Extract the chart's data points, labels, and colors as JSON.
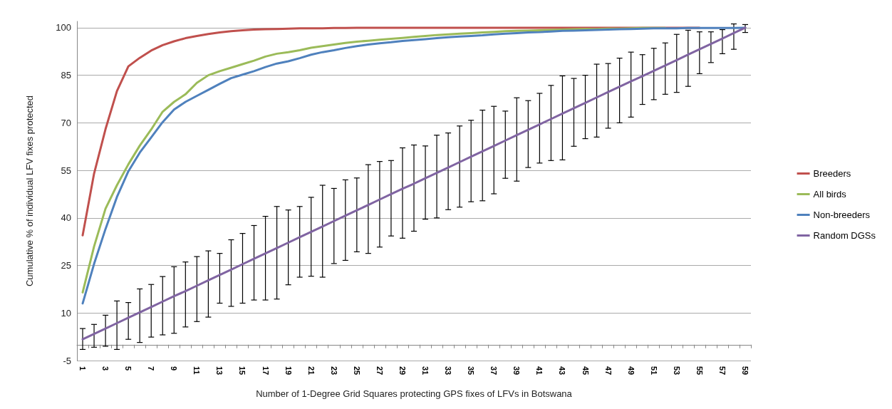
{
  "chart_data": {
    "type": "line",
    "xlabel": "Number of 1-Degree Grid Squares protecting GPS fixes of LFVs in Botswana",
    "ylabel": "Cumulative % of individual LFV fixes protected",
    "categories": [
      "1",
      null,
      "3",
      null,
      "5",
      null,
      "7",
      null,
      "9",
      null,
      "11",
      null,
      "13",
      null,
      "15",
      null,
      "17",
      null,
      "19",
      null,
      "21",
      null,
      "23",
      null,
      "25",
      null,
      "27",
      null,
      "29",
      null,
      "31",
      null,
      "33",
      null,
      "35",
      null,
      "37",
      null,
      "39",
      null,
      "41",
      null,
      "43",
      null,
      "45",
      null,
      "47",
      null,
      "49",
      null,
      "51",
      null,
      "53",
      null,
      "55",
      null,
      "57",
      null,
      "59"
    ],
    "ylim": [
      -5,
      102
    ],
    "yticks": [
      -5,
      10,
      25,
      40,
      55,
      70,
      85,
      100
    ],
    "grid": "y",
    "legend": "right",
    "marker": "none",
    "line_style": "solid",
    "series": [
      {
        "name": "Breeders",
        "color": "#c0504d",
        "values": [
          34.5,
          54,
          68,
          80,
          87.8,
          90.5,
          92.8,
          94.5,
          95.7,
          96.7,
          97.4,
          98.0,
          98.5,
          98.9,
          99.2,
          99.4,
          99.5,
          99.6,
          99.7,
          99.8,
          99.8,
          99.8,
          99.9,
          99.9,
          100,
          100,
          100,
          100,
          100,
          100,
          100,
          100,
          100,
          100,
          100,
          100,
          100,
          100,
          100,
          100,
          100,
          100,
          100,
          100,
          100,
          100,
          100,
          100,
          100,
          100,
          100,
          100,
          100,
          100,
          100,
          null,
          null,
          null,
          null
        ]
      },
      {
        "name": "All birds",
        "color": "#9bbb59",
        "values": [
          16.5,
          31,
          42.9,
          50.3,
          56.9,
          62.8,
          67.9,
          73.5,
          76.6,
          79.0,
          82.6,
          85.0,
          86.3,
          87.4,
          88.5,
          89.6,
          90.9,
          91.8,
          92.3,
          92.9,
          93.7,
          94.2,
          94.7,
          95.2,
          95.6,
          95.9,
          96.2,
          96.5,
          96.8,
          97.1,
          97.4,
          97.7,
          97.9,
          98.1,
          98.3,
          98.5,
          98.7,
          98.9,
          99.0,
          99.1,
          99.2,
          99.3,
          99.4,
          99.5,
          99.6,
          99.6,
          99.7,
          99.7,
          99.8,
          99.9,
          99.9,
          99.9,
          null,
          null,
          null,
          null,
          null,
          null,
          null
        ]
      },
      {
        "name": "Non-breeders",
        "color": "#4f81bd",
        "values": [
          13,
          25.5,
          36.5,
          46.6,
          54.7,
          60.6,
          65.4,
          70.2,
          74.2,
          76.6,
          78.5,
          80.4,
          82.3,
          84.1,
          85.2,
          86.3,
          87.6,
          88.7,
          89.4,
          90.4,
          91.5,
          92.3,
          92.9,
          93.6,
          94.2,
          94.7,
          95.1,
          95.4,
          95.8,
          96.1,
          96.4,
          96.7,
          97.0,
          97.2,
          97.4,
          97.6,
          97.9,
          98.1,
          98.3,
          98.5,
          98.6,
          98.8,
          99.0,
          99.1,
          99.2,
          99.3,
          99.4,
          99.5,
          99.6,
          99.7,
          99.8,
          99.8,
          99.8,
          99.9,
          99.9,
          99.9,
          99.9,
          99.9,
          100
        ]
      },
      {
        "name": "Random DGSs",
        "color": "#8064a2",
        "values": [
          1.7,
          3.4,
          5.1,
          6.8,
          8.5,
          10.2,
          11.9,
          13.6,
          15.3,
          16.9,
          18.6,
          20.3,
          22.0,
          23.7,
          25.4,
          27.1,
          28.8,
          30.5,
          32.2,
          33.9,
          35.6,
          37.3,
          39.0,
          40.7,
          42.4,
          44.1,
          45.8,
          47.5,
          49.2,
          50.8,
          52.5,
          54.2,
          55.9,
          57.6,
          59.3,
          61.0,
          62.7,
          64.4,
          66.1,
          67.8,
          69.5,
          71.2,
          72.9,
          74.6,
          76.3,
          78.0,
          79.7,
          81.4,
          83.1,
          84.7,
          86.4,
          88.1,
          89.8,
          91.5,
          93.2,
          94.9,
          96.6,
          98.3,
          100
        ],
        "errors": [
          [
            -1.5,
            5.1
          ],
          [
            -0.8,
            6.4
          ],
          [
            -0.5,
            9.3
          ],
          [
            -1.5,
            13.8
          ],
          [
            1.7,
            13.3
          ],
          [
            0.7,
            17.6
          ],
          [
            2.4,
            19.0
          ],
          [
            3.1,
            21.5
          ],
          [
            3.6,
            24.6
          ],
          [
            5.6,
            26.1
          ],
          [
            7.3,
            27.8
          ],
          [
            8.7,
            29.6
          ],
          [
            13.1,
            28.8
          ],
          [
            12.1,
            33.1
          ],
          [
            13.1,
            35.1
          ],
          [
            14.1,
            37.6
          ],
          [
            14.1,
            40.5
          ],
          [
            14.4,
            43.6
          ],
          [
            18.9,
            42.5
          ],
          [
            21.3,
            43.6
          ],
          [
            21.6,
            46.5
          ],
          [
            21.3,
            50.3
          ],
          [
            25.6,
            49.3
          ],
          [
            26.6,
            52.0
          ],
          [
            29.3,
            52.6
          ],
          [
            28.8,
            56.8
          ],
          [
            30.8,
            57.8
          ],
          [
            34.3,
            58.1
          ],
          [
            33.6,
            62.1
          ],
          [
            35.8,
            63.0
          ],
          [
            39.6,
            62.7
          ],
          [
            40.0,
            66.1
          ],
          [
            42.6,
            66.8
          ],
          [
            43.4,
            69.0
          ],
          [
            45.1,
            70.8
          ],
          [
            45.4,
            74.0
          ],
          [
            47.6,
            75.2
          ],
          [
            52.5,
            73.7
          ],
          [
            51.6,
            77.9
          ],
          [
            55.9,
            77.0
          ],
          [
            57.3,
            79.3
          ],
          [
            58.1,
            81.8
          ],
          [
            58.3,
            84.8
          ],
          [
            62.6,
            84.0
          ],
          [
            65.0,
            85.0
          ],
          [
            65.5,
            88.5
          ],
          [
            68.3,
            88.7
          ],
          [
            70.0,
            90.4
          ],
          [
            71.8,
            92.3
          ],
          [
            75.8,
            91.5
          ],
          [
            77.3,
            93.5
          ],
          [
            79.0,
            95.2
          ],
          [
            79.6,
            97.9
          ],
          [
            81.5,
            99.2
          ],
          [
            85.5,
            98.7
          ],
          [
            89.0,
            98.7
          ],
          [
            91.8,
            99.4
          ],
          [
            93.2,
            101.2
          ],
          [
            98.5,
            101
          ]
        ]
      }
    ]
  }
}
